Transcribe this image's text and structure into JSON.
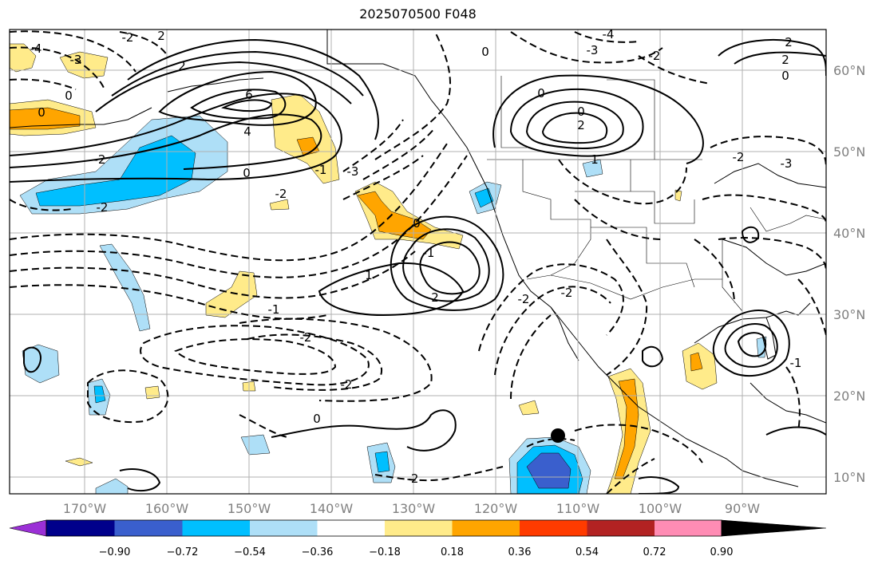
{
  "title": "2025070500 F048",
  "lon_labels": [
    "170°W",
    "160°W",
    "150°W",
    "140°W",
    "130°W",
    "120°W",
    "110°W",
    "100°W",
    "90°W"
  ],
  "lat_labels": [
    "60°N",
    "50°N",
    "40°N",
    "30°N",
    "20°N",
    "10°N"
  ],
  "colorbar": {
    "ticks": [
      "−0.90",
      "−0.72",
      "−0.54",
      "−0.36",
      "−0.18",
      "0.18",
      "0.36",
      "0.54",
      "0.72",
      "0.90"
    ],
    "colors": [
      "#9b30d6",
      "#00008b",
      "#3a5fcd",
      "#00bfff",
      "#aedff7",
      "#ffffff",
      "#ffeb8a",
      "#ffa500",
      "#ff3b00",
      "#b22222",
      "#ff8cb4"
    ]
  },
  "fill_colors": {
    "neg_light": "#aedff7",
    "neg_mid": "#00bfff",
    "neg_dark": "#3a5fcd",
    "pos_light": "#ffeb8a",
    "pos_mid": "#ffa500"
  },
  "contour_labels": [
    "-4",
    "-3",
    "2",
    "0",
    "0",
    "-2",
    "2",
    "6",
    "4",
    "-2",
    "-2",
    "0",
    "-1",
    "-3",
    "-2",
    "0",
    "-1",
    "-2",
    "-2",
    "1",
    "2",
    "-1",
    "-2",
    "-2",
    "0",
    "0",
    "0",
    "-3",
    "-4",
    "2",
    "0",
    "-2",
    "2",
    "1",
    "-2",
    "-1",
    "0",
    "-2",
    "2",
    "-3"
  ]
}
